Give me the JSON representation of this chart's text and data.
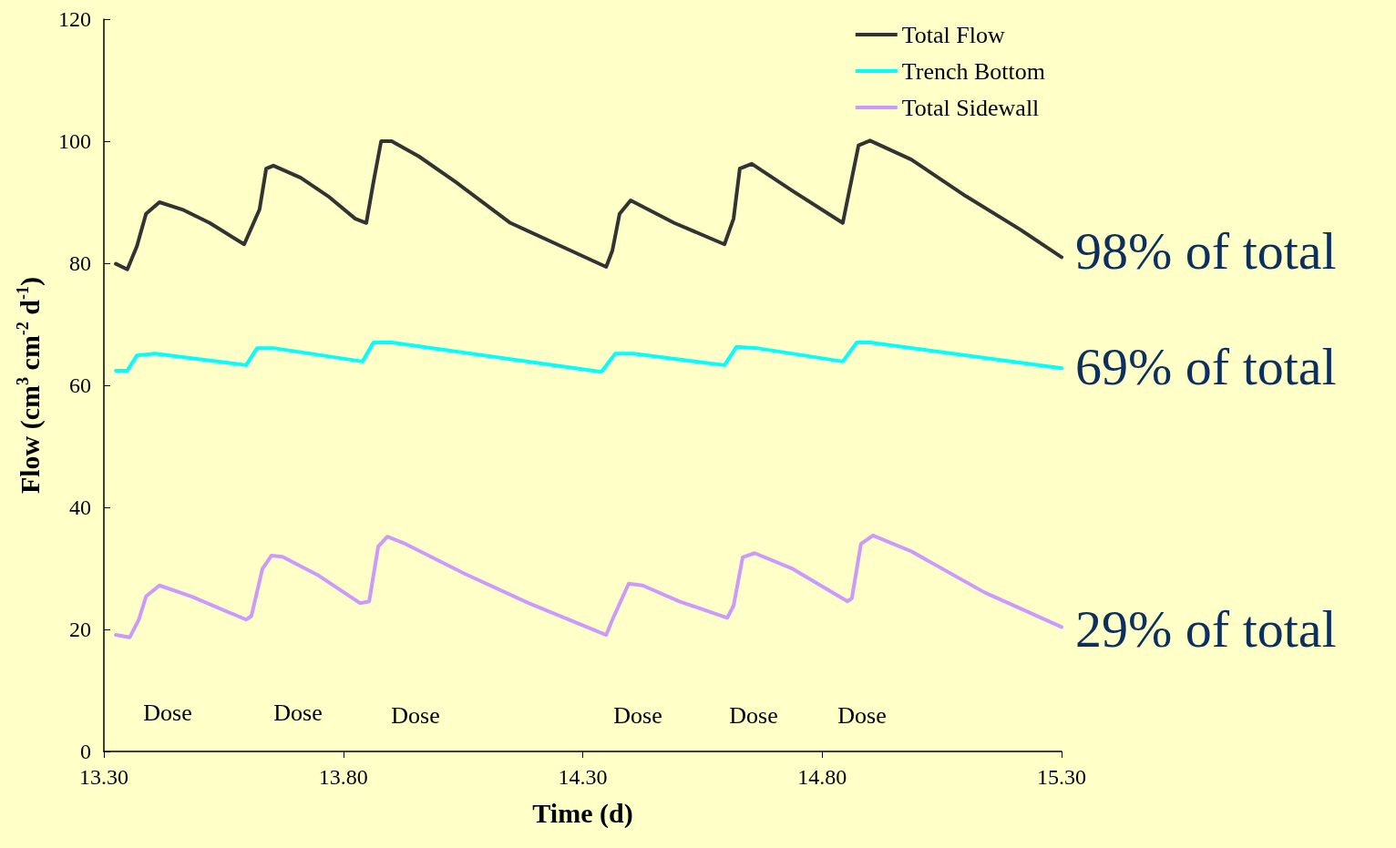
{
  "chart_data": {
    "type": "line",
    "xlabel": "Time (d)",
    "ylabel": "Flow (cm$^{3}$ cm$^{-2}$ d$^{-1}$)",
    "xlim": [
      13.3,
      15.3
    ],
    "xticks": [
      {
        "value": 13.3,
        "label": "13.30"
      },
      {
        "value": 13.8,
        "label": "13.80"
      },
      {
        "value": 14.3,
        "label": "14.30"
      },
      {
        "value": 14.8,
        "label": "14.80"
      },
      {
        "value": 15.3,
        "label": "15.30"
      }
    ],
    "ylim": [
      0,
      120
    ],
    "yticks": [
      0,
      20,
      40,
      60,
      80,
      100,
      120
    ],
    "grid": false,
    "legend": "top right",
    "marker": "none",
    "line_style": "solid",
    "series": [
      {
        "name": "Total Flow",
        "color": "#333333",
        "x": [
          13.325,
          13.349,
          13.369,
          13.388,
          13.416,
          13.464,
          13.521,
          13.593,
          13.625,
          13.639,
          13.654,
          13.711,
          13.768,
          13.825,
          13.848,
          13.863,
          13.879,
          13.901,
          13.958,
          14.035,
          14.149,
          14.263,
          14.349,
          14.362,
          14.377,
          14.4,
          14.491,
          14.596,
          14.615,
          14.628,
          14.653,
          14.739,
          14.843,
          14.876,
          14.9,
          14.986,
          15.1,
          15.214,
          15.3
        ],
        "values": [
          79.9,
          79.0,
          82.8,
          88.1,
          90.0,
          88.8,
          86.6,
          83.1,
          88.8,
          95.5,
          96.0,
          94.0,
          91.0,
          87.3,
          86.6,
          93.3,
          100.0,
          100.0,
          97.5,
          93.3,
          86.6,
          82.5,
          79.4,
          82.1,
          88.1,
          90.3,
          86.6,
          83.1,
          87.3,
          95.5,
          96.3,
          91.8,
          86.6,
          99.3,
          100.1,
          97.0,
          91.0,
          85.5,
          81.0
        ]
      },
      {
        "name": "Trench Bottom",
        "color": "#00ffff",
        "x": [
          13.325,
          13.349,
          13.369,
          13.407,
          13.597,
          13.62,
          13.654,
          13.84,
          13.863,
          13.901,
          14.339,
          14.368,
          14.406,
          14.596,
          14.621,
          14.663,
          14.843,
          14.872,
          14.9,
          15.3
        ],
        "values": [
          62.4,
          62.4,
          64.9,
          65.2,
          63.3,
          66.1,
          66.1,
          63.9,
          67.0,
          67.0,
          62.2,
          65.2,
          65.2,
          63.3,
          66.3,
          66.1,
          63.9,
          67.0,
          67.0,
          62.8
        ]
      },
      {
        "name": "Total Sidewall",
        "color": "#cc99ff",
        "x": [
          13.325,
          13.354,
          13.373,
          13.388,
          13.416,
          13.483,
          13.597,
          13.608,
          13.631,
          13.65,
          13.673,
          13.749,
          13.835,
          13.854,
          13.873,
          13.892,
          13.93,
          14.054,
          14.187,
          14.349,
          14.362,
          14.396,
          14.425,
          14.501,
          14.602,
          14.615,
          14.634,
          14.659,
          14.739,
          14.853,
          14.862,
          14.881,
          14.906,
          14.986,
          15.138,
          15.3
        ],
        "values": [
          19.1,
          18.7,
          21.6,
          25.4,
          27.2,
          25.4,
          21.6,
          22.2,
          29.9,
          32.1,
          31.9,
          28.8,
          24.3,
          24.6,
          33.6,
          35.2,
          34.0,
          29.1,
          24.3,
          19.1,
          21.6,
          27.5,
          27.2,
          24.6,
          21.9,
          23.9,
          31.8,
          32.5,
          29.9,
          24.6,
          25.1,
          34.0,
          35.4,
          32.8,
          26.1,
          20.4
        ]
      }
    ],
    "annotations": [
      "Dose",
      "Dose",
      "Dose",
      "Dose",
      "Dose",
      "Dose",
      "98% of total",
      "69% of total",
      "29% of total"
    ]
  }
}
